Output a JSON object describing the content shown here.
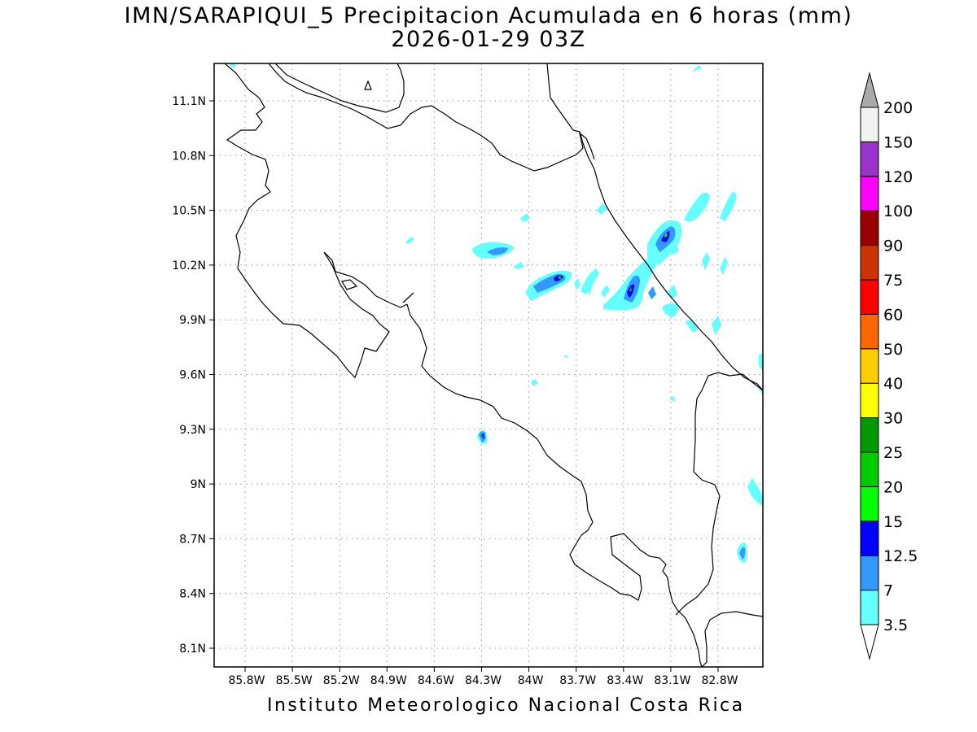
{
  "title": {
    "line1": "IMN/SARAPIQUI_5 Precipitacion Acumulada en 6 horas (mm)",
    "line2": "2026-01-29 03Z"
  },
  "footer": "Instituto Meteorologico Nacional Costa Rica",
  "map": {
    "lat_labels": [
      "11.1N",
      "10.8N",
      "10.5N",
      "10.2N",
      "9.9N",
      "9.6N",
      "9.3N",
      "9N",
      "8.7N",
      "8.4N",
      "8.1N"
    ],
    "lon_labels": [
      "85.8W",
      "85.5W",
      "85.2W",
      "84.9W",
      "84.6W",
      "84.3W",
      "84W",
      "83.7W",
      "83.4W",
      "83.1W",
      "82.8W"
    ],
    "grid": true,
    "coastline_color": "#000000"
  },
  "legend": {
    "labels": [
      "3.5",
      "7",
      "12.5",
      "15",
      "20",
      "25",
      "30",
      "40",
      "50",
      "60",
      "75",
      "90",
      "100",
      "120",
      "150",
      "200"
    ],
    "colors": [
      "#66ffff",
      "#3399ff",
      "#0000ff",
      "#00ff00",
      "#00cc00",
      "#009900",
      "#ffff00",
      "#ffcc00",
      "#ff6600",
      "#ff0000",
      "#cc3300",
      "#990000",
      "#ff00ff",
      "#9933cc",
      "#f2f2f2",
      "#aaaaaa"
    ]
  }
}
